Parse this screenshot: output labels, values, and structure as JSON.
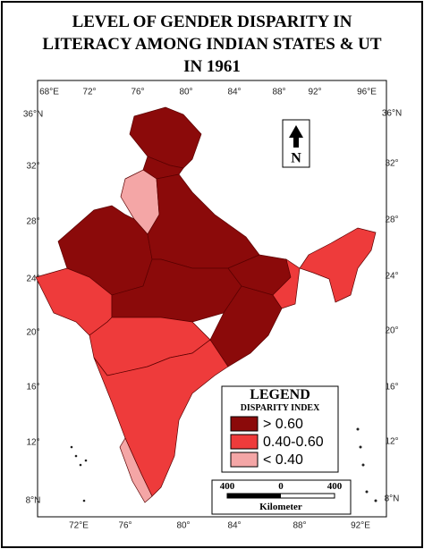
{
  "title": [
    "LEVEL OF GENDER DISPARITY IN",
    "LITERACY AMONG INDIAN STATES & UT",
    "IN 1961"
  ],
  "axes": {
    "top": [
      "68°E",
      "72°",
      "76°",
      "80°",
      "84°",
      "88°",
      "92°",
      "96°E"
    ],
    "bottom": [
      "72°E",
      "76°",
      "80°",
      "84°",
      "88°",
      "92°E"
    ],
    "left": [
      "36°N",
      "32°",
      "28°",
      "24°",
      "20°",
      "16°",
      "12°",
      "8°N"
    ],
    "right": [
      "36°N",
      "32°",
      "28°",
      "24°",
      "20°",
      "16°",
      "12°",
      "8°N"
    ]
  },
  "north": "N",
  "legend": {
    "title": "LEGEND",
    "subtitle": "DISPARITY INDEX",
    "items": [
      {
        "label": "> 0.60",
        "color": "#8b0a0a"
      },
      {
        "label": "0.40-0.60",
        "color": "#ee3b3b"
      },
      {
        "label": "< 0.40",
        "color": "#f4a6a6"
      }
    ]
  },
  "scale": {
    "ticks": [
      "400",
      "0",
      "400"
    ],
    "unit": "Kilometer"
  }
}
